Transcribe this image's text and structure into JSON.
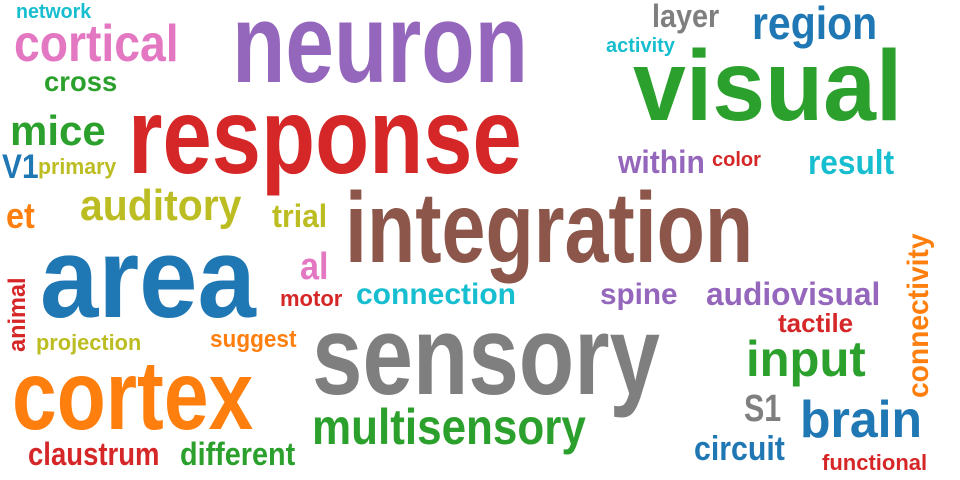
{
  "words": [
    {
      "id": "neuron",
      "text": "neuron",
      "color": "#9467bd"
    },
    {
      "id": "response",
      "text": "response",
      "color": "#d62728"
    },
    {
      "id": "integration",
      "text": "integration",
      "color": "#8c564b"
    },
    {
      "id": "sensory",
      "text": "sensory",
      "color": "#7f7f7f"
    },
    {
      "id": "area",
      "text": "area",
      "color": "#1f77b4"
    },
    {
      "id": "cortex",
      "text": "cortex",
      "color": "#ff7f0e"
    },
    {
      "id": "visual",
      "text": "visual",
      "color": "#2ca02c"
    },
    {
      "id": "cortical",
      "text": "cortical",
      "color": "#e377c2"
    },
    {
      "id": "multisensory",
      "text": "multisensory",
      "color": "#2ca02c"
    },
    {
      "id": "region",
      "text": "region",
      "color": "#1f77b4"
    },
    {
      "id": "auditory",
      "text": "auditory",
      "color": "#bcbd22"
    },
    {
      "id": "brain",
      "text": "brain",
      "color": "#1f77b4"
    },
    {
      "id": "input",
      "text": "input",
      "color": "#2ca02c"
    },
    {
      "id": "connectivity",
      "text": "connectivity",
      "color": "#ff7f0e"
    },
    {
      "id": "mice",
      "text": "mice",
      "color": "#2ca02c"
    },
    {
      "id": "connection",
      "text": "connection",
      "color": "#17becf"
    },
    {
      "id": "audiovisual",
      "text": "audiovisual",
      "color": "#9467bd"
    },
    {
      "id": "layer",
      "text": "layer",
      "color": "#7f7f7f"
    },
    {
      "id": "result",
      "text": "result",
      "color": "#17becf"
    },
    {
      "id": "within",
      "text": "within",
      "color": "#9467bd"
    },
    {
      "id": "trial",
      "text": "trial",
      "color": "#bcbd22"
    },
    {
      "id": "spine",
      "text": "spine",
      "color": "#9467bd"
    },
    {
      "id": "claustrum",
      "text": "claustrum",
      "color": "#d62728"
    },
    {
      "id": "different",
      "text": "different",
      "color": "#2ca02c"
    },
    {
      "id": "cross",
      "text": "cross",
      "color": "#2ca02c"
    },
    {
      "id": "tactile",
      "text": "tactile",
      "color": "#d62728"
    },
    {
      "id": "circuit",
      "text": "circuit",
      "color": "#1f77b4"
    },
    {
      "id": "al",
      "text": "al",
      "color": "#e377c2"
    },
    {
      "id": "et",
      "text": "et",
      "color": "#ff7f0e"
    },
    {
      "id": "v1",
      "text": "V1",
      "color": "#1f77b4"
    },
    {
      "id": "s1",
      "text": "S1",
      "color": "#7f7f7f"
    },
    {
      "id": "animal",
      "text": "animal",
      "color": "#d62728"
    },
    {
      "id": "suggest",
      "text": "suggest",
      "color": "#ff7f0e"
    },
    {
      "id": "primary",
      "text": "primary",
      "color": "#bcbd22"
    },
    {
      "id": "projection",
      "text": "projection",
      "color": "#bcbd22"
    },
    {
      "id": "functional",
      "text": "functional",
      "color": "#d62728"
    },
    {
      "id": "motor",
      "text": "motor",
      "color": "#d62728"
    },
    {
      "id": "activity",
      "text": "activity",
      "color": "#17becf"
    },
    {
      "id": "color",
      "text": "color",
      "color": "#d62728"
    },
    {
      "id": "network",
      "text": "network",
      "color": "#17becf"
    }
  ]
}
